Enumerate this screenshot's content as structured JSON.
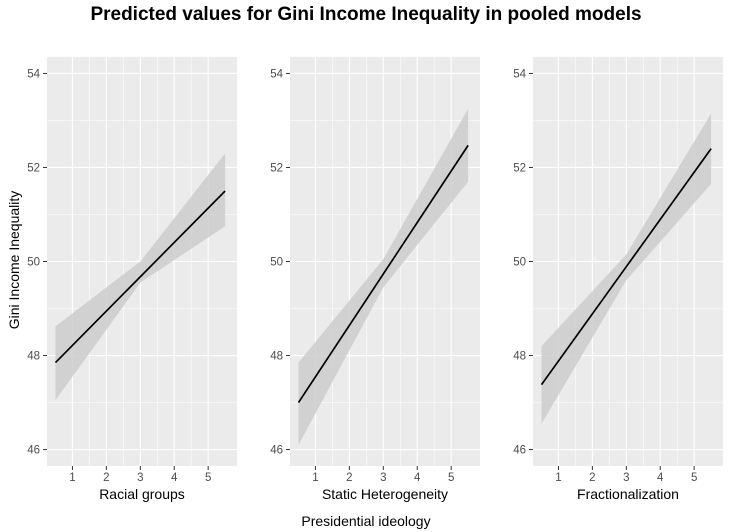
{
  "title": "Predicted values for Gini Income Inequality in pooled models",
  "shared_xlabel": "Presidential ideology",
  "shared_ylabel": "Gini Income Inequality",
  "colors": {
    "panel_bg": "#ebebeb",
    "grid": "#ffffff",
    "ribbon": "#cccccc",
    "line": "#000000",
    "tick_text": "#4d4d4d"
  },
  "chart_data": [
    {
      "type": "line",
      "xlabel": "Racial groups",
      "ylabel": "Gini Income Inequality",
      "xlim": [
        0.25,
        5.85
      ],
      "ylim": [
        45.65,
        54.35
      ],
      "xticks": [
        1,
        2,
        3,
        4,
        5
      ],
      "yticks": [
        46,
        48,
        50,
        52,
        54
      ],
      "grid": true,
      "x": [
        0.5,
        5.5
      ],
      "y": [
        47.85,
        51.5
      ],
      "ribbon": {
        "x": [
          0.5,
          3.0,
          5.5
        ],
        "lower": [
          47.05,
          49.55,
          50.75
        ],
        "upper": [
          48.62,
          50.0,
          52.3
        ]
      }
    },
    {
      "type": "line",
      "xlabel": "Static Heterogeneity",
      "ylabel": "",
      "xlim": [
        0.25,
        5.85
      ],
      "ylim": [
        45.65,
        54.35
      ],
      "xticks": [
        1,
        2,
        3,
        4,
        5
      ],
      "yticks": [
        46,
        48,
        50,
        52,
        54
      ],
      "grid": true,
      "x": [
        0.5,
        5.5
      ],
      "y": [
        47.0,
        52.47
      ],
      "ribbon": {
        "x": [
          0.5,
          3.0,
          5.5
        ],
        "lower": [
          46.1,
          49.45,
          51.7
        ],
        "upper": [
          47.85,
          50.05,
          53.25
        ]
      }
    },
    {
      "type": "line",
      "xlabel": "Fractionalization",
      "ylabel": "",
      "xlim": [
        0.25,
        5.85
      ],
      "ylim": [
        45.65,
        54.35
      ],
      "xticks": [
        1,
        2,
        3,
        4,
        5
      ],
      "yticks": [
        46,
        48,
        50,
        52,
        54
      ],
      "grid": true,
      "x": [
        0.5,
        5.5
      ],
      "y": [
        47.38,
        52.4
      ],
      "ribbon": {
        "x": [
          0.5,
          3.0,
          5.5
        ],
        "lower": [
          46.55,
          49.6,
          51.65
        ],
        "upper": [
          48.2,
          50.15,
          53.15
        ]
      }
    }
  ]
}
